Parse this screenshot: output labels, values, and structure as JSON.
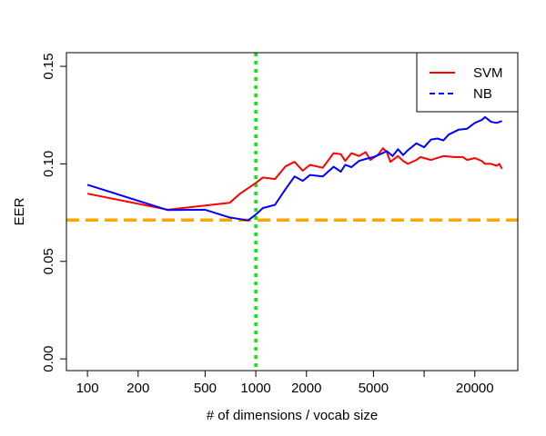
{
  "chart_data": {
    "type": "line",
    "title": "",
    "xlabel": "# of dimensions / vocab size",
    "ylabel": "EER",
    "x_scale": "log",
    "xlim": [
      75,
      36000
    ],
    "ylim": [
      -0.006,
      0.157
    ],
    "x_ticks": [
      100,
      200,
      500,
      1000,
      2000,
      5000,
      10000,
      20000
    ],
    "x_tick_labels": [
      "100",
      "200",
      "500",
      "1000",
      "2000",
      "5000",
      "",
      "20000"
    ],
    "y_ticks": [
      0.0,
      0.05,
      0.1,
      0.15
    ],
    "y_tick_labels": [
      "0.00",
      "0.05",
      "0.10",
      "0.15"
    ],
    "grid": false,
    "legend": {
      "position": "top-right",
      "entries": [
        "SVM",
        "NB"
      ]
    },
    "series": [
      {
        "name": "SVM",
        "color": "#ff0000",
        "dash": "solid",
        "x": [
          100,
          300,
          700,
          800,
          1000,
          1100,
          1300,
          1500,
          1700,
          1900,
          2100,
          2500,
          2900,
          3200,
          3400,
          3700,
          4100,
          4500,
          4800,
          5300,
          5700,
          6000,
          6300,
          7000,
          7500,
          8000,
          9000,
          9500,
          11000,
          13000,
          15000,
          17000,
          18000,
          20000,
          22000,
          23000,
          25000,
          27000,
          28000,
          29000
        ],
        "y": [
          0.0847,
          0.0765,
          0.08,
          0.0845,
          0.0902,
          0.093,
          0.0922,
          0.0987,
          0.101,
          0.0965,
          0.0995,
          0.098,
          0.1055,
          0.105,
          0.1015,
          0.1055,
          0.104,
          0.106,
          0.102,
          0.1045,
          0.108,
          0.106,
          0.101,
          0.104,
          0.1015,
          0.1,
          0.102,
          0.1035,
          0.102,
          0.104,
          0.1035,
          0.1035,
          0.102,
          0.103,
          0.1015,
          0.1,
          0.1,
          0.099,
          0.1,
          0.0975
        ]
      },
      {
        "name": "NB",
        "color": "#0000ff",
        "dash": "solid",
        "x": [
          100,
          300,
          500,
          700,
          900,
          1000,
          1100,
          1300,
          1500,
          1700,
          1900,
          2100,
          2500,
          2900,
          3200,
          3400,
          3700,
          4100,
          4500,
          5000,
          5500,
          6000,
          6500,
          7000,
          7500,
          8000,
          9000,
          10000,
          11000,
          12000,
          13000,
          14000,
          16000,
          18000,
          20000,
          22000,
          23000,
          25000,
          27000,
          29000
        ],
        "y": [
          0.0893,
          0.0763,
          0.0765,
          0.0725,
          0.071,
          0.074,
          0.0773,
          0.079,
          0.087,
          0.0935,
          0.0913,
          0.0943,
          0.0935,
          0.0985,
          0.096,
          0.0995,
          0.0983,
          0.1015,
          0.1025,
          0.1035,
          0.105,
          0.1065,
          0.104,
          0.1075,
          0.1045,
          0.107,
          0.1105,
          0.1085,
          0.1125,
          0.113,
          0.112,
          0.115,
          0.1175,
          0.118,
          0.121,
          0.1225,
          0.124,
          0.1215,
          0.121,
          0.122
        ]
      }
    ],
    "reference_lines": [
      {
        "orientation": "horizontal",
        "value": 0.0712,
        "color": "#ffa500",
        "dash": "dashed"
      },
      {
        "orientation": "vertical",
        "value": 1000,
        "color": "#00ee00",
        "dash": "dotted"
      }
    ]
  }
}
